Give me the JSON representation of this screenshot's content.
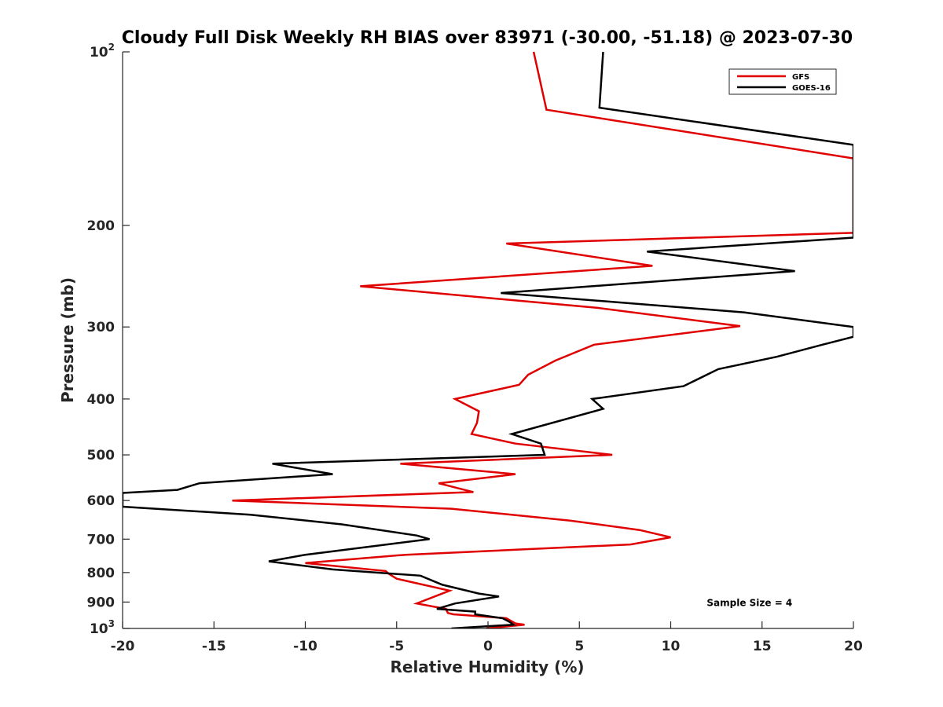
{
  "chart_data": {
    "type": "line",
    "title": "Cloudy Full Disk Weekly RH BIAS over 83971 (-30.00, -51.18) @ 2023-07-30",
    "xlabel": "Relative Humidity (%)",
    "ylabel": "Pressure (mb)",
    "xlim": [
      -20,
      20
    ],
    "ylim": [
      100,
      1000
    ],
    "y_scale": "log",
    "y_reversed": true,
    "grid": false,
    "legend_position": "top-right",
    "x_ticks": [
      -20,
      -15,
      -10,
      -5,
      0,
      5,
      10,
      15,
      20
    ],
    "y_ticks": [
      100,
      200,
      300,
      400,
      500,
      600,
      700,
      800,
      900,
      1000
    ],
    "y_tick_labels": [
      {
        "base": "10",
        "exp": "2"
      },
      {
        "base": "200",
        "exp": ""
      },
      {
        "base": "300",
        "exp": ""
      },
      {
        "base": "400",
        "exp": ""
      },
      {
        "base": "500",
        "exp": ""
      },
      {
        "base": "600",
        "exp": ""
      },
      {
        "base": "700",
        "exp": ""
      },
      {
        "base": "800",
        "exp": ""
      },
      {
        "base": "900",
        "exp": ""
      },
      {
        "base": "10",
        "exp": "3"
      }
    ],
    "series": [
      {
        "name": "GFS",
        "color": "#e00000",
        "points": [
          [
            2.5,
            100
          ],
          [
            3.2,
            126
          ],
          [
            20,
            153
          ],
          [
            20,
            206
          ],
          [
            1.0,
            215
          ],
          [
            9.0,
            235
          ],
          [
            -7.0,
            255
          ],
          [
            6.0,
            278
          ],
          [
            13.8,
            299
          ],
          [
            5.8,
            322
          ],
          [
            3.7,
            343
          ],
          [
            2.2,
            363
          ],
          [
            1.7,
            378
          ],
          [
            -1.8,
            400
          ],
          [
            -0.5,
            420
          ],
          [
            -0.6,
            440
          ],
          [
            -0.9,
            460
          ],
          [
            1.5,
            478
          ],
          [
            6.8,
            500
          ],
          [
            -4.8,
            518
          ],
          [
            1.5,
            540
          ],
          [
            -2.7,
            560
          ],
          [
            -0.8,
            580
          ],
          [
            -14.0,
            600
          ],
          [
            -2.0,
            620
          ],
          [
            4.5,
            650
          ],
          [
            8.3,
            675
          ],
          [
            10.0,
            695
          ],
          [
            7.8,
            715
          ],
          [
            -4.5,
            745
          ],
          [
            -10.0,
            770
          ],
          [
            -5.6,
            795
          ],
          [
            -5.4,
            805
          ],
          [
            -5.0,
            820
          ],
          [
            -2.1,
            860
          ],
          [
            -3.9,
            905
          ],
          [
            -2.3,
            925
          ],
          [
            -2.2,
            940
          ],
          [
            -1.9,
            945
          ],
          [
            1.0,
            960
          ],
          [
            1.5,
            980
          ],
          [
            2.0,
            985
          ],
          [
            -0.1,
            1000
          ]
        ]
      },
      {
        "name": "GOES-16",
        "color": "#000000",
        "points": [
          [
            6.3,
            100
          ],
          [
            6.1,
            125
          ],
          [
            20,
            145
          ],
          [
            20,
            210
          ],
          [
            8.7,
            222
          ],
          [
            16.8,
            240
          ],
          [
            0.7,
            262
          ],
          [
            14.0,
            283
          ],
          [
            20,
            300
          ],
          [
            20,
            312
          ],
          [
            18.3,
            322
          ],
          [
            15.8,
            338
          ],
          [
            12.6,
            355
          ],
          [
            10.7,
            380
          ],
          [
            5.7,
            400
          ],
          [
            6.3,
            416
          ],
          [
            1.3,
            460
          ],
          [
            2.9,
            478
          ],
          [
            3.1,
            500
          ],
          [
            -11.8,
            518
          ],
          [
            -8.5,
            540
          ],
          [
            -15.8,
            560
          ],
          [
            -17.0,
            575
          ],
          [
            -20,
            582
          ],
          [
            -20,
            615
          ],
          [
            -13.0,
            635
          ],
          [
            -8.0,
            660
          ],
          [
            -3.9,
            690
          ],
          [
            -3.2,
            700
          ],
          [
            -10.0,
            745
          ],
          [
            -12.0,
            765
          ],
          [
            -8.5,
            790
          ],
          [
            -3.7,
            810
          ],
          [
            -2.5,
            840
          ],
          [
            -0.5,
            870
          ],
          [
            0.6,
            880
          ],
          [
            -1.8,
            905
          ],
          [
            -2.8,
            925
          ],
          [
            -0.7,
            935
          ],
          [
            -0.7,
            945
          ],
          [
            0.8,
            960
          ],
          [
            1.2,
            975
          ],
          [
            1.4,
            985
          ],
          [
            -2.0,
            1000
          ]
        ]
      }
    ],
    "annotations": [
      {
        "text": "Sample Size = 4",
        "x": 15.5,
        "y": 900
      }
    ]
  }
}
